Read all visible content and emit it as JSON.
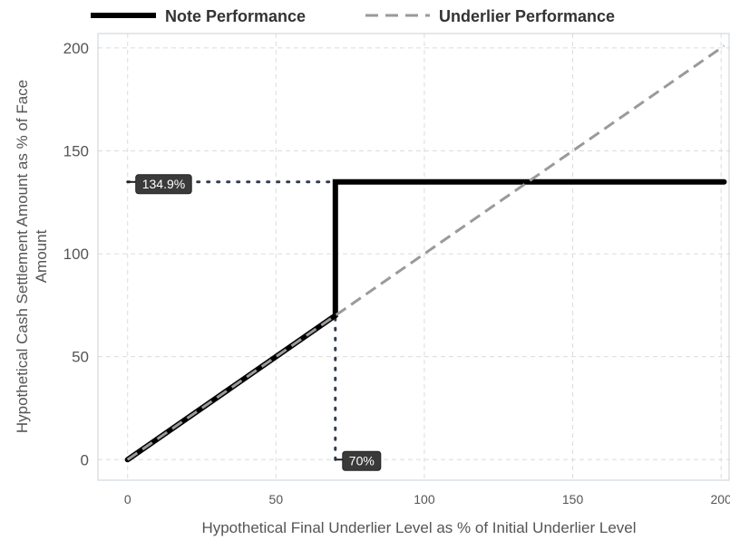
{
  "chart_data": {
    "type": "line",
    "title": "",
    "xlabel": "Hypothetical Final Underlier Level as % of Initial Underlier Level",
    "ylabel_lines": [
      "Hypothetical Cash Settlement Amount as % of Face",
      "Amount"
    ],
    "xlim": [
      -10,
      203
    ],
    "ylim": [
      -10,
      207
    ],
    "x_ticks": [
      0,
      50,
      100,
      150,
      200
    ],
    "y_ticks": [
      0,
      50,
      100,
      150,
      200
    ],
    "grid": true,
    "legend_position": "top",
    "series": [
      {
        "name": "Note Performance",
        "style": "solid",
        "color": "#000000",
        "x": [
          0,
          70,
          70,
          201
        ],
        "y": [
          0,
          70,
          134.9,
          134.9
        ]
      },
      {
        "name": "Underlier Performance",
        "style": "dashed",
        "color": "#9a9a9a",
        "x": [
          0,
          201
        ],
        "y": [
          0,
          201
        ]
      }
    ],
    "annotations": [
      {
        "text": "134.9%",
        "axis": "y",
        "value": 134.9
      },
      {
        "text": "70%",
        "axis": "x",
        "value": 70
      }
    ]
  }
}
